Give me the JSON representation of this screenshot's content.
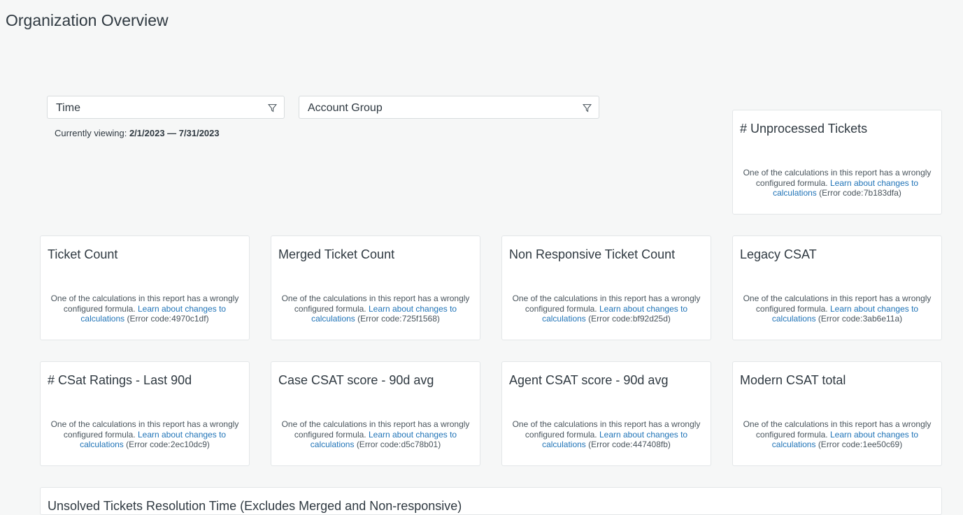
{
  "page": {
    "title": "Organization Overview"
  },
  "filters": [
    {
      "label": "Time",
      "icon": "filter-icon"
    },
    {
      "label": "Account Group",
      "icon": "filter-icon"
    }
  ],
  "viewing": {
    "prefix": "Currently viewing:",
    "range": "2/1/2023 — 7/31/2023"
  },
  "error": {
    "message": "One of the calculations in this report has a wrongly configured formula.",
    "link": "Learn about changes to calculations",
    "code_prefix": "(Error code:",
    "code_suffix": ")"
  },
  "colors": {
    "link": "#1f73b7",
    "background": "#f6f7f7"
  },
  "cards": [
    {
      "title": "# Unprocessed Tickets",
      "code": "7b183dfa"
    },
    {
      "title": "Ticket Count",
      "code": "4970c1df"
    },
    {
      "title": "Merged Ticket Count",
      "code": "725f1568"
    },
    {
      "title": "Non Responsive Ticket Count",
      "code": "bf92d25d"
    },
    {
      "title": "Legacy CSAT",
      "code": "3ab6e11a"
    },
    {
      "title": "# CSat Ratings - Last 90d",
      "code": "2ec10dc9"
    },
    {
      "title": "Case CSAT score - 90d avg",
      "code": "d5c78b01"
    },
    {
      "title": "Agent CSAT score - 90d avg",
      "code": "447408fb"
    },
    {
      "title": "Modern CSAT total",
      "code": "1ee50c69"
    }
  ],
  "bottom_card": {
    "title": "Unsolved Tickets Resolution Time (Excludes Merged and Non-responsive)"
  }
}
